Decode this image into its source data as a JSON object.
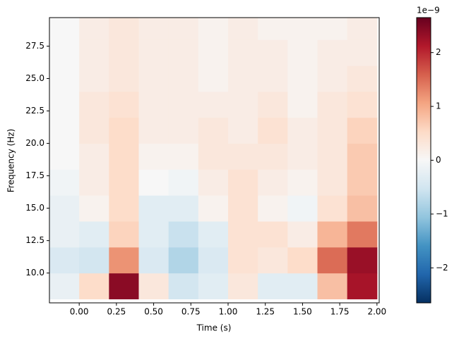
{
  "chart_data": {
    "type": "heatmap",
    "xlabel": "Time (s)",
    "ylabel": "Frequency (Hz)",
    "x": [
      -0.1,
      0.1,
      0.3,
      0.5,
      0.7,
      0.9,
      1.1,
      1.3,
      1.5,
      1.7,
      1.9
    ],
    "y": [
      9,
      11,
      13,
      15,
      17,
      19,
      21,
      23,
      25,
      27,
      29
    ],
    "values": [
      [
        -0.2,
        0.5,
        2.4,
        0.3,
        -0.5,
        -0.3,
        0.3,
        -0.3,
        -0.3,
        0.8,
        2.2
      ],
      [
        -0.4,
        -0.5,
        1.2,
        -0.4,
        -0.8,
        -0.4,
        0.4,
        0.3,
        0.5,
        1.5,
        2.3
      ],
      [
        -0.2,
        -0.3,
        0.6,
        -0.3,
        -0.6,
        -0.3,
        0.4,
        0.4,
        0.2,
        0.9,
        1.4
      ],
      [
        -0.2,
        0.1,
        0.5,
        -0.3,
        -0.3,
        0.1,
        0.4,
        0.1,
        -0.1,
        0.4,
        0.8
      ],
      [
        -0.1,
        0.2,
        0.5,
        0.0,
        -0.1,
        0.2,
        0.4,
        0.2,
        0.1,
        0.3,
        0.7
      ],
      [
        0.0,
        0.2,
        0.5,
        0.1,
        0.1,
        0.3,
        0.3,
        0.3,
        0.2,
        0.3,
        0.7
      ],
      [
        0.0,
        0.3,
        0.5,
        0.2,
        0.2,
        0.3,
        0.2,
        0.4,
        0.2,
        0.3,
        0.6
      ],
      [
        0.0,
        0.3,
        0.4,
        0.2,
        0.2,
        0.2,
        0.2,
        0.3,
        0.1,
        0.3,
        0.4
      ],
      [
        0.0,
        0.2,
        0.3,
        0.2,
        0.2,
        0.1,
        0.2,
        0.2,
        0.1,
        0.2,
        0.3
      ],
      [
        0.0,
        0.2,
        0.3,
        0.2,
        0.2,
        0.1,
        0.2,
        0.2,
        0.1,
        0.2,
        0.2
      ],
      [
        0.0,
        0.2,
        0.3,
        0.2,
        0.2,
        0.1,
        0.2,
        0.1,
        0.1,
        0.1,
        0.2
      ]
    ],
    "xlim": [
      -0.2,
      2.015
    ],
    "ylim": [
      7.7,
      29.7
    ],
    "xticks": [
      {
        "value": 0,
        "label": "0.00"
      },
      {
        "value": 0.25,
        "label": "0.25"
      },
      {
        "value": 0.5,
        "label": "0.50"
      },
      {
        "value": 0.75,
        "label": "0.75"
      },
      {
        "value": 1,
        "label": "1.00"
      },
      {
        "value": 1.25,
        "label": "1.25"
      },
      {
        "value": 1.5,
        "label": "1.50"
      },
      {
        "value": 1.75,
        "label": "1.75"
      },
      {
        "value": 2,
        "label": "2.00"
      }
    ],
    "yticks": [
      {
        "value": 10,
        "label": "10.0"
      },
      12.5,
      {
        "value": 15,
        "label": "15.0"
      },
      17.5,
      {
        "value": 20,
        "label": "20.0"
      },
      22.5,
      {
        "value": 25,
        "label": "25.0"
      },
      27.5
    ],
    "colormap": [
      "#053061",
      "#2166ac",
      "#4393c3",
      "#92c5de",
      "#d1e5f0",
      "#f7f7f7",
      "#fddbc7",
      "#f4a582",
      "#d6604d",
      "#b2182b",
      "#67001f"
    ],
    "colorbar": {
      "lim": [
        -2.65,
        2.65
      ],
      "ticks": [
        {
          "value": -2,
          "label": "−2"
        },
        {
          "value": -1,
          "label": "−1"
        },
        0,
        1,
        2
      ],
      "offset_label": "1e−9"
    }
  }
}
